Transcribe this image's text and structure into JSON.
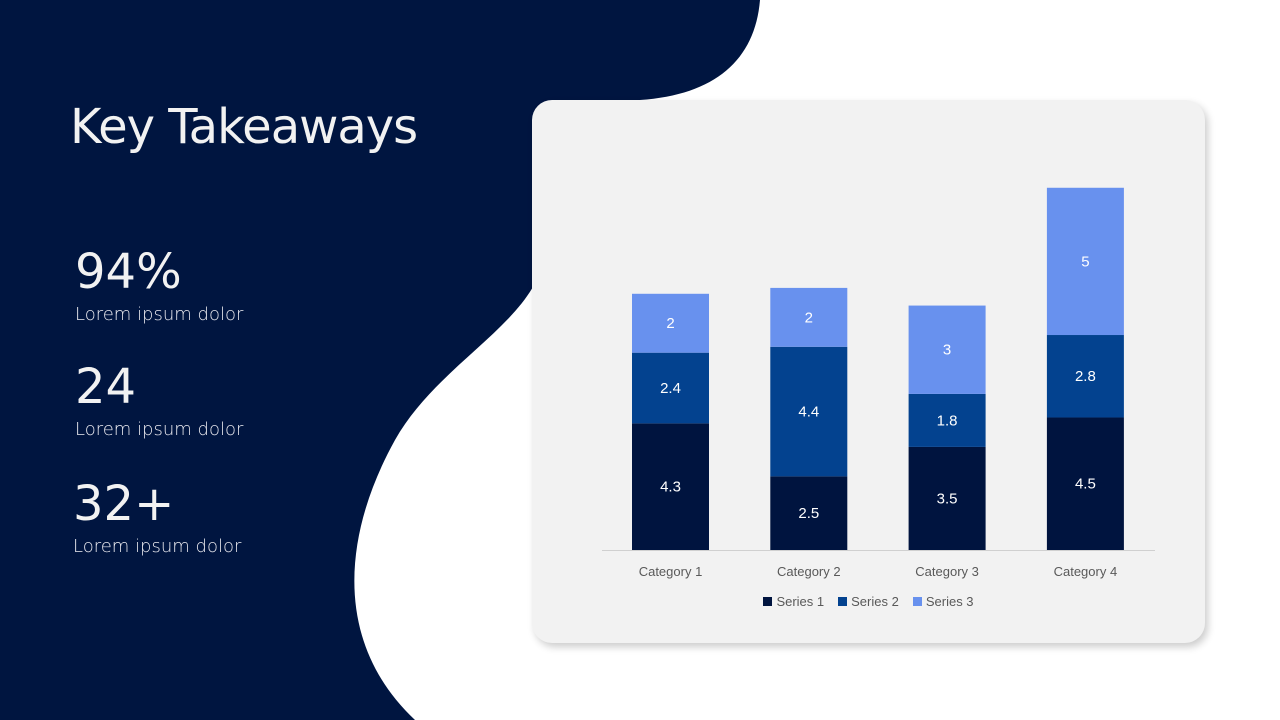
{
  "title": "Key Takeaways",
  "stats": [
    {
      "value": "94%",
      "label": "Lorem ipsum dolor"
    },
    {
      "value": "24",
      "label": "Lorem ipsum dolor"
    },
    {
      "value": "32+",
      "label": "Lorem ipsum dolor"
    }
  ],
  "colors": {
    "background": "#001540",
    "card": "#f2f2f2"
  },
  "chart_data": {
    "type": "bar",
    "stacked": true,
    "categories": [
      "Category 1",
      "Category 2",
      "Category 3",
      "Category 4"
    ],
    "series": [
      {
        "name": "Series 1",
        "values": [
          4.3,
          2.5,
          3.5,
          4.5
        ],
        "color": "#00143f"
      },
      {
        "name": "Series 2",
        "values": [
          2.4,
          4.4,
          1.8,
          2.8
        ],
        "color": "#03428f"
      },
      {
        "name": "Series 3",
        "values": [
          2,
          2,
          3,
          5
        ],
        "color": "#6891ee"
      }
    ],
    "data_labels": true,
    "grid": false,
    "legend": "bottom"
  }
}
